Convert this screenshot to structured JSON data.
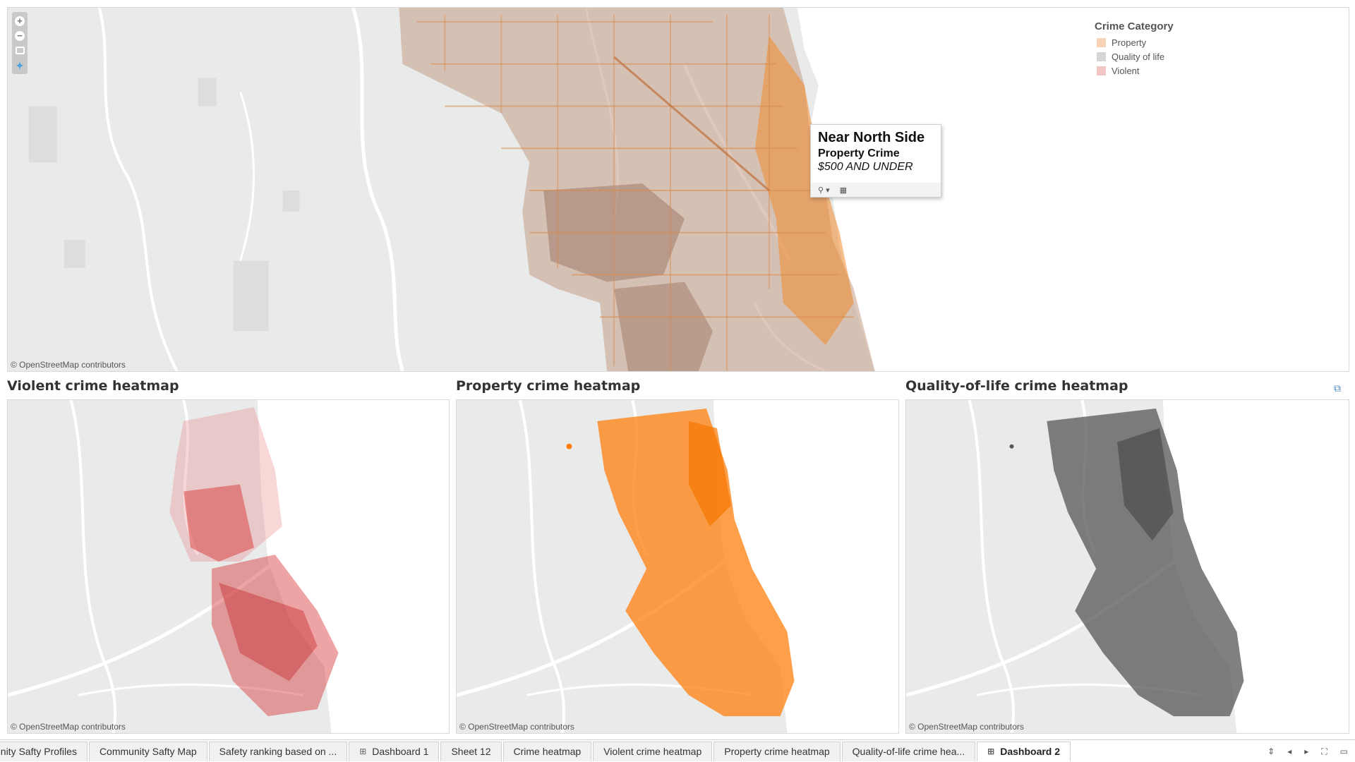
{
  "main_map": {
    "attribution": "© OpenStreetMap contributors",
    "legend": {
      "title": "Crime Category",
      "items": [
        {
          "label": "Property",
          "color": "#f7d2b6"
        },
        {
          "label": "Quality of life",
          "color": "#d5d5d5"
        },
        {
          "label": "Violent",
          "color": "#f3c6c6"
        }
      ]
    },
    "tooltip": {
      "title": "Near North Side",
      "subtitle": "Property Crime",
      "value": "$500 AND UNDER"
    },
    "tools": [
      "zoom-in-icon",
      "zoom-out-icon",
      "select-rect-icon",
      "pin-icon"
    ]
  },
  "heatmaps": {
    "violent": {
      "title": "Violent crime heatmap",
      "attribution": "© OpenStreetMap contributors",
      "color": "#d62728"
    },
    "property": {
      "title": "Property crime heatmap",
      "attribution": "© OpenStreetMap contributors",
      "color": "#ff7f0e"
    },
    "quality": {
      "title": "Quality-of-life crime heatmap",
      "attribution": "© OpenStreetMap contributors",
      "color": "#555555"
    }
  },
  "tabs": [
    {
      "label": "unity Safty Profiles",
      "icon": ""
    },
    {
      "label": "Community Safty Map",
      "icon": ""
    },
    {
      "label": "Safety ranking based on ...",
      "icon": ""
    },
    {
      "label": "Dashboard 1",
      "icon": "⊞"
    },
    {
      "label": "Sheet 12",
      "icon": ""
    },
    {
      "label": "Crime heatmap",
      "icon": ""
    },
    {
      "label": "Violent crime heatmap",
      "icon": ""
    },
    {
      "label": "Property crime heatmap",
      "icon": ""
    },
    {
      "label": "Quality-of-life crime hea...",
      "icon": ""
    },
    {
      "label": "Dashboard 2",
      "icon": "⊞",
      "active": true
    }
  ]
}
